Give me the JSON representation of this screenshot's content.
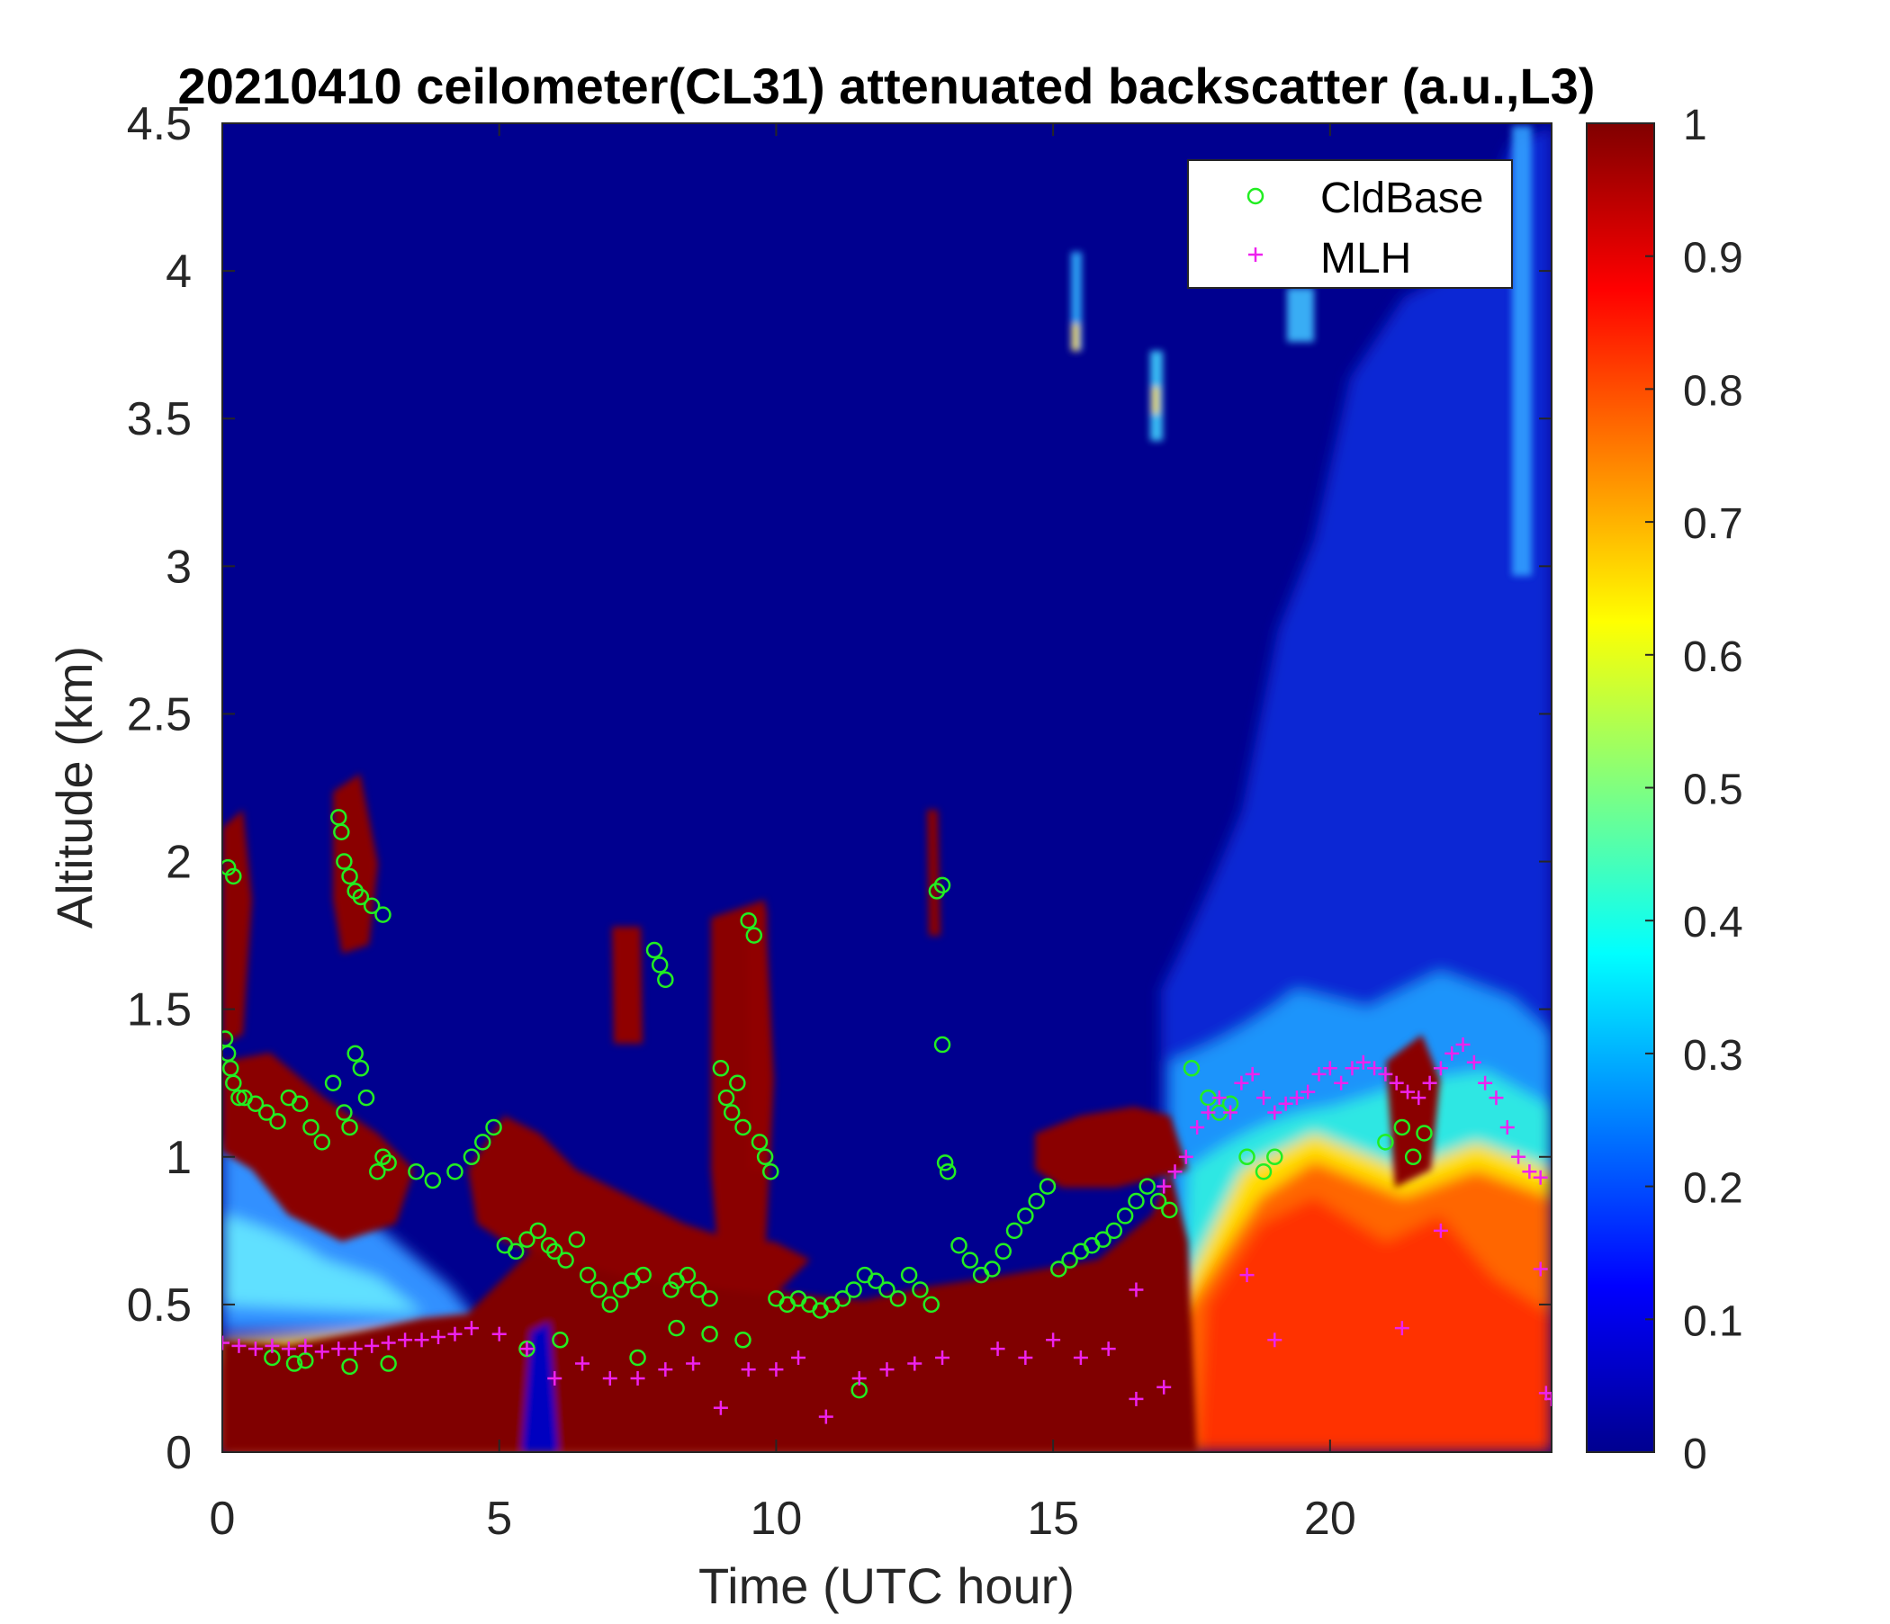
{
  "chart_data": {
    "type": "heatmap",
    "title": "20210410 ceilometer(CL31) attenuated backscatter (a.u.,L3)",
    "xlabel": "Time (UTC hour)",
    "ylabel": "Altitude (km)",
    "xlim": [
      0,
      24
    ],
    "ylim": [
      0,
      4.5
    ],
    "xticks": [
      0,
      5,
      10,
      15,
      20
    ],
    "xtick_labels": [
      "0",
      "5",
      "10",
      "15",
      "20"
    ],
    "yticks": [
      0,
      0.5,
      1,
      1.5,
      2,
      2.5,
      3,
      3.5,
      4,
      4.5
    ],
    "ytick_labels": [
      "0",
      "0.5",
      "1",
      "1.5",
      "2",
      "2.5",
      "3",
      "3.5",
      "4",
      "4.5"
    ],
    "colorbar": {
      "colormap": "jet",
      "clim": [
        0,
        1
      ],
      "ticks": [
        0,
        0.1,
        0.2,
        0.3,
        0.4,
        0.5,
        0.6,
        0.7,
        0.8,
        0.9,
        1
      ],
      "tick_labels": [
        "0",
        "0.1",
        "0.2",
        "0.3",
        "0.4",
        "0.5",
        "0.6",
        "0.7",
        "0.8",
        "0.9",
        "1"
      ]
    },
    "grid": false,
    "legend": {
      "position": "top-right"
    },
    "series": [
      {
        "name": "CldBase",
        "marker": "circle",
        "color": "#22ee22",
        "x": [
          0.05,
          0.1,
          0.15,
          0.2,
          0.3,
          0.1,
          0.2,
          0.4,
          0.6,
          0.8,
          1.0,
          1.2,
          1.4,
          1.6,
          1.8,
          2.0,
          2.2,
          2.3,
          2.4,
          2.5,
          2.6,
          2.8,
          2.9,
          2.1,
          2.15,
          2.2,
          2.3,
          2.4,
          2.5,
          2.7,
          2.9,
          3.0,
          3.5,
          3.8,
          4.2,
          4.5,
          4.7,
          4.9,
          5.1,
          5.3,
          5.5,
          5.7,
          5.9,
          6.0,
          6.2,
          6.4,
          6.6,
          6.8,
          7.0,
          7.2,
          7.4,
          7.6,
          7.8,
          7.9,
          8.0,
          8.1,
          8.2,
          8.4,
          8.6,
          8.8,
          9.0,
          9.1,
          9.2,
          9.3,
          9.4,
          9.5,
          9.6,
          9.7,
          9.8,
          9.9,
          10.0,
          10.2,
          10.4,
          10.6,
          10.8,
          11.0,
          11.2,
          11.4,
          11.6,
          11.8,
          12.0,
          12.2,
          12.4,
          12.6,
          12.8,
          12.9,
          13.0,
          13.05,
          13.1,
          13.3,
          13.5,
          13.7,
          13.9,
          14.1,
          14.3,
          14.5,
          14.7,
          14.9,
          15.1,
          15.3,
          15.5,
          15.7,
          15.9,
          16.1,
          16.3,
          16.5,
          16.7,
          16.9,
          17.1,
          17.5,
          17.8,
          18.0,
          18.2,
          18.5,
          18.8,
          19.0,
          0.9,
          1.3,
          1.5,
          2.3,
          3.0,
          5.5,
          6.1,
          7.5,
          8.2,
          8.8,
          9.4,
          11.5,
          13.0,
          21.0,
          21.3,
          21.5,
          21.7
        ],
        "y": [
          1.4,
          1.35,
          1.3,
          1.25,
          1.2,
          1.98,
          1.95,
          1.2,
          1.18,
          1.15,
          1.12,
          1.2,
          1.18,
          1.1,
          1.05,
          1.25,
          1.15,
          1.1,
          1.35,
          1.3,
          1.2,
          0.95,
          1.0,
          2.15,
          2.1,
          2.0,
          1.95,
          1.9,
          1.88,
          1.85,
          1.82,
          0.98,
          0.95,
          0.92,
          0.95,
          1.0,
          1.05,
          1.1,
          0.7,
          0.68,
          0.72,
          0.75,
          0.7,
          0.68,
          0.65,
          0.72,
          0.6,
          0.55,
          0.5,
          0.55,
          0.58,
          0.6,
          1.7,
          1.65,
          1.6,
          0.55,
          0.58,
          0.6,
          0.55,
          0.52,
          1.3,
          1.2,
          1.15,
          1.25,
          1.1,
          1.8,
          1.75,
          1.05,
          1.0,
          0.95,
          0.52,
          0.5,
          0.52,
          0.5,
          0.48,
          0.5,
          0.52,
          0.55,
          0.6,
          0.58,
          0.55,
          0.52,
          0.6,
          0.55,
          0.5,
          1.9,
          1.92,
          0.98,
          0.95,
          0.7,
          0.65,
          0.6,
          0.62,
          0.68,
          0.75,
          0.8,
          0.85,
          0.9,
          0.62,
          0.65,
          0.68,
          0.7,
          0.72,
          0.75,
          0.8,
          0.85,
          0.9,
          0.85,
          0.82,
          1.3,
          1.2,
          1.15,
          1.18,
          1.0,
          0.95,
          1.0,
          0.32,
          0.3,
          0.31,
          0.29,
          0.3,
          0.35,
          0.38,
          0.32,
          0.42,
          0.4,
          0.38,
          0.21,
          1.38,
          1.05,
          1.1,
          1.0,
          1.08
        ]
      },
      {
        "name": "MLH",
        "marker": "plus",
        "color": "#ee22ee",
        "x": [
          0.0,
          0.3,
          0.6,
          0.9,
          1.2,
          1.5,
          1.8,
          2.1,
          2.4,
          2.7,
          3.0,
          3.3,
          3.6,
          3.9,
          4.2,
          4.5,
          5.0,
          5.5,
          6.0,
          6.5,
          7.0,
          7.5,
          8.0,
          8.5,
          9.0,
          9.5,
          10.0,
          10.4,
          10.9,
          11.5,
          12.0,
          12.5,
          13.0,
          14.0,
          14.5,
          15.0,
          15.5,
          16.0,
          16.5,
          17.0,
          17.2,
          17.4,
          17.6,
          17.8,
          18.0,
          18.2,
          18.4,
          18.6,
          18.8,
          19.0,
          19.2,
          19.4,
          19.6,
          19.8,
          20.0,
          20.2,
          20.4,
          20.6,
          20.8,
          21.0,
          21.2,
          21.4,
          21.6,
          21.8,
          22.0,
          22.2,
          22.4,
          22.6,
          22.8,
          23.0,
          23.2,
          23.4,
          23.6,
          23.8,
          23.9,
          24.0,
          16.5,
          17.0,
          18.5,
          19.0,
          21.3,
          22.0,
          23.8
        ],
        "y": [
          0.37,
          0.36,
          0.35,
          0.36,
          0.35,
          0.36,
          0.34,
          0.35,
          0.35,
          0.36,
          0.37,
          0.38,
          0.38,
          0.39,
          0.4,
          0.42,
          0.4,
          0.35,
          0.25,
          0.3,
          0.25,
          0.25,
          0.28,
          0.3,
          0.15,
          0.28,
          0.28,
          0.32,
          0.12,
          0.25,
          0.28,
          0.3,
          0.32,
          0.35,
          0.32,
          0.38,
          0.32,
          0.35,
          0.18,
          0.9,
          0.95,
          1.0,
          1.1,
          1.15,
          1.2,
          1.15,
          1.25,
          1.28,
          1.2,
          1.15,
          1.18,
          1.2,
          1.22,
          1.28,
          1.3,
          1.25,
          1.3,
          1.32,
          1.3,
          1.28,
          1.25,
          1.22,
          1.2,
          1.25,
          1.3,
          1.35,
          1.38,
          1.32,
          1.25,
          1.2,
          1.1,
          1.0,
          0.95,
          0.93,
          0.2,
          0.18,
          0.55,
          0.22,
          0.6,
          0.38,
          0.42,
          0.75,
          0.62
        ]
      }
    ]
  }
}
